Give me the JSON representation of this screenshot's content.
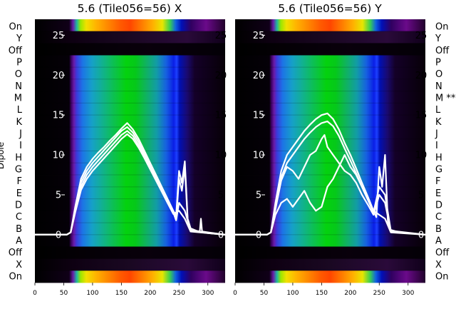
{
  "chart_data": [
    {
      "type": "heatmap",
      "title": "5.6 (Tile056=56) X",
      "ylabel": "Dipole",
      "row_labels_top_to_bottom": [
        "On",
        "Y",
        "Off",
        "P",
        "O",
        "N",
        "M",
        "L",
        "K",
        "J",
        "I",
        "H",
        "G",
        "F",
        "E",
        "D",
        "C",
        "B",
        "A",
        "Off",
        "X",
        "On"
      ],
      "xlim": [
        0,
        330
      ],
      "x_ticks": [
        0,
        50,
        100,
        150,
        200,
        250,
        300
      ],
      "overlay_ylim": [
        -6,
        27
      ],
      "overlay_y_ticks": [
        0,
        5,
        10,
        15,
        20,
        25
      ],
      "grid": false,
      "series": [
        {
          "x": [
            0,
            55,
            62,
            70,
            80,
            90,
            100,
            110,
            120,
            130,
            140,
            150,
            160,
            170,
            180,
            190,
            200,
            210,
            220,
            230,
            240,
            245,
            250,
            255,
            260,
            265,
            270,
            280,
            286,
            288,
            290,
            300,
            320,
            330
          ],
          "y": [
            0,
            0,
            0.3,
            3.5,
            7,
            8.5,
            9.5,
            10.3,
            11,
            11.8,
            12.5,
            13.3,
            14,
            13.2,
            12,
            10.5,
            9,
            7.5,
            6,
            4.5,
            3,
            2.3,
            8,
            6.5,
            9.2,
            2,
            0.8,
            0.5,
            0.4,
            2,
            0.4,
            0.3,
            0.1,
            0
          ]
        },
        {
          "x": [
            0,
            55,
            62,
            70,
            80,
            90,
            100,
            110,
            120,
            130,
            140,
            150,
            160,
            170,
            180,
            190,
            200,
            210,
            220,
            230,
            240,
            245,
            250,
            255,
            260,
            265,
            270,
            280,
            300,
            330
          ],
          "y": [
            0,
            0,
            0.3,
            3.2,
            6.5,
            8,
            9,
            9.8,
            10.6,
            11.4,
            12.2,
            13,
            13.5,
            12.8,
            11.6,
            10.2,
            8.8,
            7.3,
            5.8,
            4.4,
            2.9,
            2,
            7,
            5.5,
            8.5,
            1.8,
            0.6,
            0.4,
            0.2,
            0
          ]
        },
        {
          "x": [
            0,
            55,
            62,
            70,
            80,
            90,
            100,
            110,
            120,
            130,
            140,
            150,
            160,
            170,
            180,
            190,
            200,
            210,
            220,
            230,
            240,
            245,
            250,
            260,
            270,
            330
          ],
          "y": [
            0,
            0,
            0.3,
            3,
            6,
            7.5,
            8.5,
            9.3,
            10.1,
            10.9,
            11.7,
            12.5,
            13,
            12.4,
            11.2,
            9.9,
            8.5,
            7,
            5.6,
            4.2,
            2.8,
            1.8,
            4,
            3,
            0.5,
            0
          ]
        },
        {
          "x": [
            0,
            55,
            62,
            70,
            80,
            90,
            100,
            110,
            120,
            130,
            140,
            150,
            160,
            170,
            180,
            190,
            200,
            210,
            220,
            230,
            240,
            250,
            260,
            270,
            330
          ],
          "y": [
            0,
            0,
            0.3,
            2.8,
            5.6,
            7,
            8,
            8.8,
            9.6,
            10.4,
            11.2,
            12,
            12.6,
            12,
            10.9,
            9.6,
            8.2,
            6.8,
            5.4,
            4,
            2.6,
            3,
            2,
            0.4,
            0
          ]
        }
      ]
    },
    {
      "type": "heatmap",
      "title": "5.6 (Tile056=56) Y",
      "row_labels_top_to_bottom": [
        "On",
        "Y",
        "Off",
        "P",
        "O",
        "N",
        "M **",
        "L",
        "K",
        "J",
        "I",
        "H",
        "G",
        "F",
        "E",
        "D",
        "C",
        "B",
        "A",
        "Off",
        "X",
        "On"
      ],
      "xlim": [
        0,
        330
      ],
      "x_ticks": [
        0,
        50,
        100,
        150,
        200,
        250,
        300
      ],
      "overlay_ylim": [
        -6,
        27
      ],
      "overlay_y_ticks": [
        0,
        5,
        10,
        15,
        20,
        25
      ],
      "grid": false,
      "series": [
        {
          "x": [
            0,
            55,
            62,
            70,
            80,
            90,
            100,
            110,
            120,
            130,
            140,
            150,
            160,
            170,
            180,
            190,
            200,
            210,
            220,
            230,
            240,
            245,
            250,
            255,
            260,
            265,
            270,
            280,
            300,
            330
          ],
          "y": [
            0,
            0,
            0.3,
            4,
            8,
            10,
            11,
            12,
            13,
            13.8,
            14.5,
            15,
            15.2,
            14.5,
            13.2,
            11.5,
            10,
            8.3,
            6.5,
            4.8,
            3,
            2.2,
            8.5,
            6,
            10,
            1.5,
            0.6,
            0.4,
            0.2,
            0
          ]
        },
        {
          "x": [
            0,
            55,
            62,
            70,
            80,
            90,
            100,
            110,
            120,
            130,
            140,
            150,
            160,
            170,
            180,
            190,
            200,
            210,
            220,
            230,
            240,
            250,
            260,
            270,
            330
          ],
          "y": [
            0,
            0,
            0.3,
            3.5,
            7.2,
            9,
            10,
            11,
            12,
            12.8,
            13.5,
            14,
            14.2,
            13.6,
            12.4,
            10.8,
            9.3,
            7.7,
            6,
            4.4,
            2.8,
            6,
            5,
            0.5,
            0
          ]
        },
        {
          "x": [
            0,
            55,
            62,
            70,
            80,
            90,
            100,
            110,
            120,
            130,
            140,
            150,
            155,
            160,
            170,
            180,
            190,
            200,
            210,
            220,
            230,
            240,
            250,
            260,
            270,
            330
          ],
          "y": [
            0,
            0,
            0.3,
            3.2,
            6.8,
            8.5,
            8,
            7,
            8.5,
            10,
            10.5,
            12,
            12.5,
            11,
            10,
            9,
            8,
            7.5,
            6.5,
            5,
            3.8,
            2.5,
            5,
            4,
            0.4,
            0
          ]
        },
        {
          "x": [
            0,
            55,
            62,
            70,
            80,
            90,
            100,
            110,
            120,
            130,
            140,
            150,
            160,
            170,
            180,
            190,
            200,
            210,
            220,
            230,
            240,
            250,
            260,
            270,
            330
          ],
          "y": [
            0,
            0,
            0.3,
            2.5,
            4,
            4.5,
            3.5,
            4.5,
            5.5,
            4,
            3,
            3.5,
            6,
            7,
            8.5,
            10,
            8.5,
            7.5,
            6,
            4.5,
            3,
            2.5,
            2,
            0.3,
            0
          ]
        }
      ]
    }
  ]
}
